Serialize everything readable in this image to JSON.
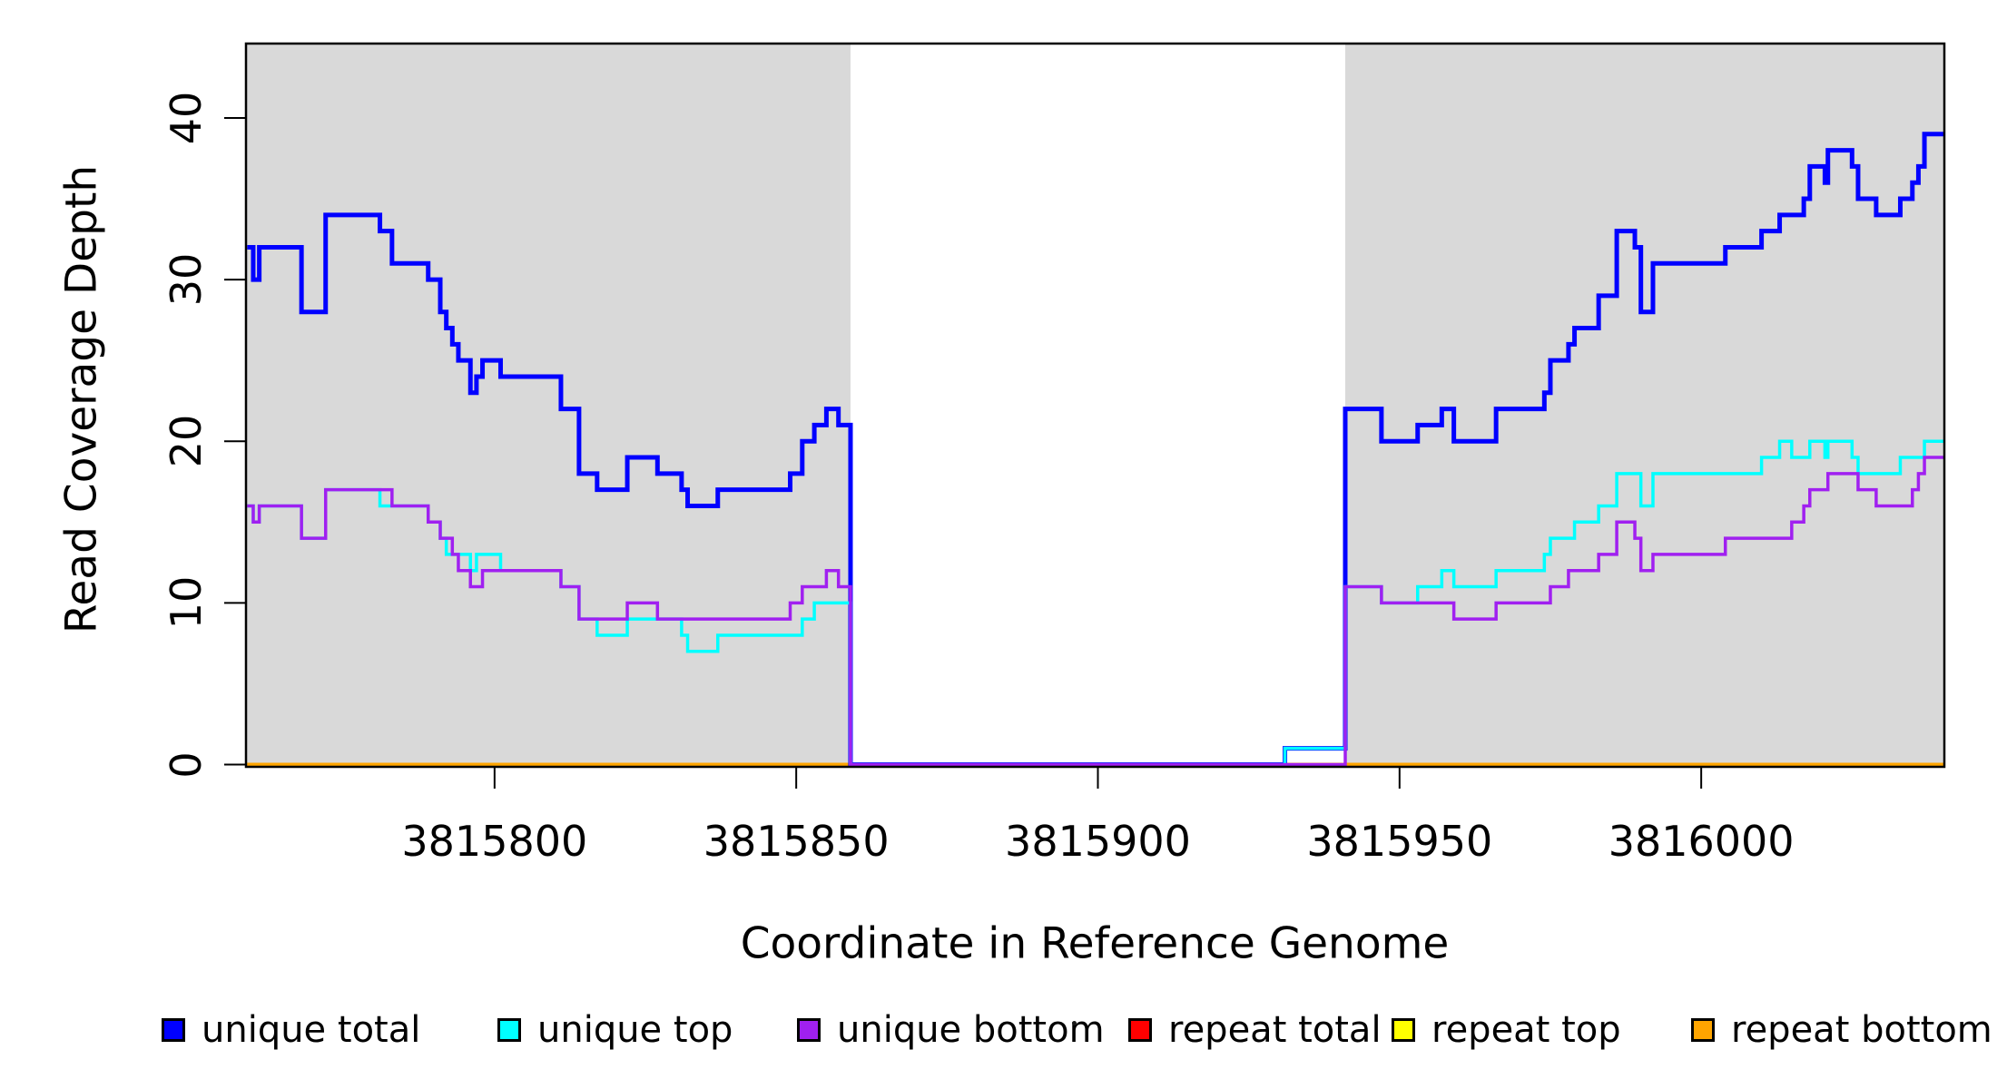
{
  "chart_data": {
    "type": "line",
    "subtype": "step-post",
    "title": "",
    "xlabel": "Coordinate in Reference Genome",
    "ylabel": "Read Coverage Depth",
    "xlim": [
      3815758.8,
      3816040.3
    ],
    "ylim": [
      0,
      44.6
    ],
    "x_ticks": [
      "3815800",
      "3815850",
      "3815900",
      "3815950",
      "3816000"
    ],
    "x_tick_values": [
      3815800,
      3815850,
      3815900,
      3815950,
      3816000
    ],
    "y_ticks": [
      "0",
      "10",
      "20",
      "30",
      "40"
    ],
    "y_tick_values": [
      0,
      10,
      20,
      30,
      40
    ],
    "grid": false,
    "plot_background": "#ffffff",
    "shaded_region_color": "#d9d9d9",
    "shaded_regions": [
      {
        "from": 3815758.8,
        "to": 3815859
      },
      {
        "from": 3815941,
        "to": 3816040.3
      }
    ],
    "x_end": 3816040.3,
    "series": [
      {
        "name": "repeat total",
        "color": "#ff0000",
        "width": 4,
        "steps": [
          [
            3815759,
            0
          ]
        ]
      },
      {
        "name": "repeat top",
        "color": "#ffff00",
        "width": 4,
        "steps": [
          [
            3815759,
            0
          ]
        ]
      },
      {
        "name": "repeat bottom",
        "color": "#ffa500",
        "width": 4,
        "steps": [
          [
            3815759,
            0
          ]
        ]
      },
      {
        "name": "unique total",
        "color": "#0000ff",
        "width": 5,
        "steps": [
          [
            3815759,
            32
          ],
          [
            3815760,
            30
          ],
          [
            3815761,
            32
          ],
          [
            3815768,
            28
          ],
          [
            3815772,
            34
          ],
          [
            3815781,
            33
          ],
          [
            3815783,
            31
          ],
          [
            3815789,
            30
          ],
          [
            3815791,
            28
          ],
          [
            3815792,
            27
          ],
          [
            3815793,
            26
          ],
          [
            3815794,
            25
          ],
          [
            3815796,
            23
          ],
          [
            3815797,
            24
          ],
          [
            3815798,
            25
          ],
          [
            3815801,
            24
          ],
          [
            3815811,
            22
          ],
          [
            3815814,
            18
          ],
          [
            3815817,
            17
          ],
          [
            3815822,
            19
          ],
          [
            3815827,
            18
          ],
          [
            3815831,
            17
          ],
          [
            3815832,
            16
          ],
          [
            3815837,
            17
          ],
          [
            3815849,
            18
          ],
          [
            3815851,
            20
          ],
          [
            3815853,
            21
          ],
          [
            3815855,
            22
          ],
          [
            3815857,
            21
          ],
          [
            3815859,
            0
          ],
          [
            3815931,
            1
          ],
          [
            3815941,
            22
          ],
          [
            3815947,
            20
          ],
          [
            3815953,
            21
          ],
          [
            3815957,
            22
          ],
          [
            3815959,
            20
          ],
          [
            3815966,
            22
          ],
          [
            3815974,
            23
          ],
          [
            3815975,
            25
          ],
          [
            3815978,
            26
          ],
          [
            3815979,
            27
          ],
          [
            3815983,
            29
          ],
          [
            3815986,
            33
          ],
          [
            3815989,
            32
          ],
          [
            3815990,
            28
          ],
          [
            3815992,
            31
          ],
          [
            3816004,
            32
          ],
          [
            3816010,
            33
          ],
          [
            3816013,
            34
          ],
          [
            3816017,
            35
          ],
          [
            3816018,
            37
          ],
          [
            3816020.5,
            36
          ],
          [
            3816021,
            38
          ],
          [
            3816025,
            37
          ],
          [
            3816026,
            35
          ],
          [
            3816029,
            34
          ],
          [
            3816033,
            35
          ],
          [
            3816035,
            36
          ],
          [
            3816036,
            37
          ],
          [
            3816037,
            39
          ]
        ]
      },
      {
        "name": "unique top",
        "color": "#00ffff",
        "width": 3.5,
        "steps": [
          [
            3815759,
            16
          ],
          [
            3815760,
            15
          ],
          [
            3815761,
            16
          ],
          [
            3815768,
            14
          ],
          [
            3815772,
            17
          ],
          [
            3815781,
            16
          ],
          [
            3815789,
            15
          ],
          [
            3815791,
            14
          ],
          [
            3815792,
            13
          ],
          [
            3815796,
            12
          ],
          [
            3815797,
            13
          ],
          [
            3815801,
            12
          ],
          [
            3815811,
            11
          ],
          [
            3815814,
            9
          ],
          [
            3815817,
            8
          ],
          [
            3815822,
            9
          ],
          [
            3815831,
            8
          ],
          [
            3815832,
            7
          ],
          [
            3815837,
            8
          ],
          [
            3815851,
            9
          ],
          [
            3815853,
            10
          ],
          [
            3815859,
            0
          ],
          [
            3815931,
            1
          ],
          [
            3815941,
            11
          ],
          [
            3815947,
            10
          ],
          [
            3815953,
            11
          ],
          [
            3815957,
            12
          ],
          [
            3815959,
            11
          ],
          [
            3815966,
            12
          ],
          [
            3815974,
            13
          ],
          [
            3815975,
            14
          ],
          [
            3815979,
            15
          ],
          [
            3815983,
            16
          ],
          [
            3815986,
            18
          ],
          [
            3815990,
            16
          ],
          [
            3815992,
            18
          ],
          [
            3816010,
            19
          ],
          [
            3816013,
            20
          ],
          [
            3816015,
            19
          ],
          [
            3816018,
            20
          ],
          [
            3816020.5,
            19
          ],
          [
            3816021,
            20
          ],
          [
            3816025,
            19
          ],
          [
            3816026,
            18
          ],
          [
            3816033,
            19
          ],
          [
            3816037,
            20
          ]
        ]
      },
      {
        "name": "unique bottom",
        "color": "#a020f0",
        "width": 3.5,
        "steps": [
          [
            3815759,
            16
          ],
          [
            3815760,
            15
          ],
          [
            3815761,
            16
          ],
          [
            3815768,
            14
          ],
          [
            3815772,
            17
          ],
          [
            3815783,
            16
          ],
          [
            3815789,
            15
          ],
          [
            3815791,
            14
          ],
          [
            3815793,
            13
          ],
          [
            3815794,
            12
          ],
          [
            3815796,
            11
          ],
          [
            3815798,
            12
          ],
          [
            3815811,
            11
          ],
          [
            3815814,
            9
          ],
          [
            3815822,
            10
          ],
          [
            3815827,
            9
          ],
          [
            3815849,
            10
          ],
          [
            3815851,
            11
          ],
          [
            3815855,
            12
          ],
          [
            3815857,
            11
          ],
          [
            3815859,
            0
          ],
          [
            3815941,
            11
          ],
          [
            3815947,
            10
          ],
          [
            3815959,
            9
          ],
          [
            3815966,
            10
          ],
          [
            3815975,
            11
          ],
          [
            3815978,
            12
          ],
          [
            3815983,
            13
          ],
          [
            3815986,
            15
          ],
          [
            3815989,
            14
          ],
          [
            3815990,
            12
          ],
          [
            3815992,
            13
          ],
          [
            3816004,
            14
          ],
          [
            3816015,
            15
          ],
          [
            3816017,
            16
          ],
          [
            3816018,
            17
          ],
          [
            3816021,
            18
          ],
          [
            3816026,
            17
          ],
          [
            3816029,
            16
          ],
          [
            3816035,
            17
          ],
          [
            3816036,
            18
          ],
          [
            3816037,
            19
          ]
        ]
      }
    ],
    "legend": {
      "position": "bottom",
      "items": [
        {
          "label": "unique total",
          "color": "#0000ff"
        },
        {
          "label": "unique top",
          "color": "#00ffff"
        },
        {
          "label": "unique bottom",
          "color": "#a020f0"
        },
        {
          "label": "repeat total",
          "color": "#ff0000"
        },
        {
          "label": "repeat top",
          "color": "#ffff00"
        },
        {
          "label": "repeat bottom",
          "color": "#ffa500"
        }
      ]
    }
  }
}
